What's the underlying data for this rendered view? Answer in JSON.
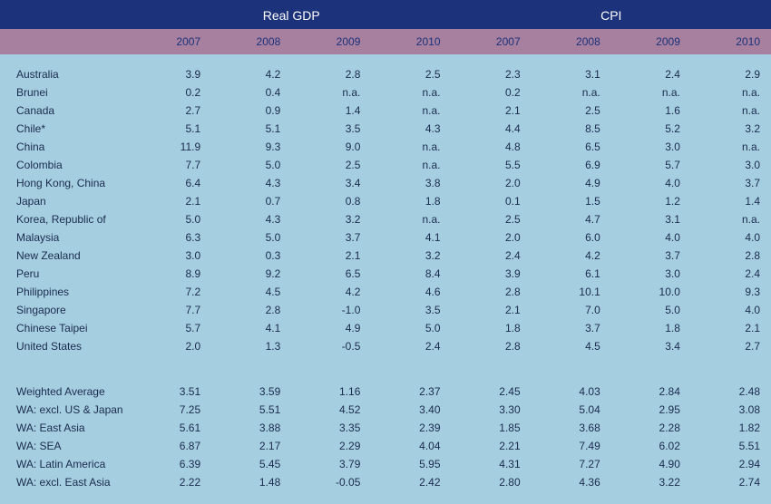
{
  "colors": {
    "header_bg": "#1c327a",
    "header_text": "#ffffff",
    "subheader_bg": "#a77f9f",
    "subheader_text": "#1c327a",
    "body_bg": "#a6cee1",
    "body_text": "#1a2b4d"
  },
  "groups": [
    {
      "label": "Real GDP",
      "span": 4
    },
    {
      "label": "CPI",
      "span": 4
    }
  ],
  "years": [
    "2007",
    "2008",
    "2009",
    "2010",
    "2007",
    "2008",
    "2009",
    "2010"
  ],
  "countries": [
    {
      "label": "Australia",
      "v": [
        "3.9",
        "4.2",
        "2.8",
        "2.5",
        "2.3",
        "3.1",
        "2.4",
        "2.9"
      ]
    },
    {
      "label": "Brunei",
      "v": [
        "0.2",
        "0.4",
        "n.a.",
        "n.a.",
        "0.2",
        "n.a.",
        "n.a.",
        "n.a."
      ]
    },
    {
      "label": "Canada",
      "v": [
        "2.7",
        "0.9",
        "1.4",
        "n.a.",
        "2.1",
        "2.5",
        "1.6",
        "n.a."
      ]
    },
    {
      "label": "Chile*",
      "v": [
        "5.1",
        "5.1",
        "3.5",
        "4.3",
        "4.4",
        "8.5",
        "5.2",
        "3.2"
      ]
    },
    {
      "label": "China",
      "v": [
        "11.9",
        "9.3",
        "9.0",
        "n.a.",
        "4.8",
        "6.5",
        "3.0",
        "n.a."
      ]
    },
    {
      "label": "Colombia",
      "v": [
        "7.7",
        "5.0",
        "2.5",
        "n.a.",
        "5.5",
        "6.9",
        "5.7",
        "3.0"
      ]
    },
    {
      "label": "Hong Kong, China",
      "v": [
        "6.4",
        "4.3",
        "3.4",
        "3.8",
        "2.0",
        "4.9",
        "4.0",
        "3.7"
      ]
    },
    {
      "label": "Japan",
      "v": [
        "2.1",
        "0.7",
        "0.8",
        "1.8",
        "0.1",
        "1.5",
        "1.2",
        "1.4"
      ]
    },
    {
      "label": "Korea, Republic of",
      "v": [
        "5.0",
        "4.3",
        "3.2",
        "n.a.",
        "2.5",
        "4.7",
        "3.1",
        "n.a."
      ]
    },
    {
      "label": "Malaysia",
      "v": [
        "6.3",
        "5.0",
        "3.7",
        "4.1",
        "2.0",
        "6.0",
        "4.0",
        "4.0"
      ]
    },
    {
      "label": "New Zealand",
      "v": [
        "3.0",
        "0.3",
        "2.1",
        "3.2",
        "2.4",
        "4.2",
        "3.7",
        "2.8"
      ]
    },
    {
      "label": "Peru",
      "v": [
        "8.9",
        "9.2",
        "6.5",
        "8.4",
        "3.9",
        "6.1",
        "3.0",
        "2.4"
      ]
    },
    {
      "label": "Philippines",
      "v": [
        "7.2",
        "4.5",
        "4.2",
        "4.6",
        "2.8",
        "10.1",
        "10.0",
        "9.3"
      ]
    },
    {
      "label": "Singapore",
      "v": [
        "7.7",
        "2.8",
        "-1.0",
        "3.5",
        "2.1",
        "7.0",
        "5.0",
        "4.0"
      ]
    },
    {
      "label": "Chinese Taipei",
      "v": [
        "5.7",
        "4.1",
        "4.9",
        "5.0",
        "1.8",
        "3.7",
        "1.8",
        "2.1"
      ]
    },
    {
      "label": "United States",
      "v": [
        "2.0",
        "1.3",
        "-0.5",
        "2.4",
        "2.8",
        "4.5",
        "3.4",
        "2.7"
      ]
    }
  ],
  "aggregates": [
    {
      "label": "Weighted Average",
      "v": [
        "3.51",
        "3.59",
        "1.16",
        "2.37",
        "2.45",
        "4.03",
        "2.84",
        "2.48"
      ]
    },
    {
      "label": "WA: excl. US & Japan",
      "v": [
        "7.25",
        "5.51",
        "4.52",
        "3.40",
        "3.30",
        "5.04",
        "2.95",
        "3.08"
      ]
    },
    {
      "label": "WA: East Asia",
      "v": [
        "5.61",
        "3.88",
        "3.35",
        "2.39",
        "1.85",
        "3.68",
        "2.28",
        "1.82"
      ]
    },
    {
      "label": "WA: SEA",
      "v": [
        "6.87",
        "2.17",
        "2.29",
        "4.04",
        "2.21",
        "7.49",
        "6.02",
        "5.51"
      ]
    },
    {
      "label": "WA: Latin America",
      "v": [
        "6.39",
        "5.45",
        "3.79",
        "5.95",
        "4.31",
        "7.27",
        "4.90",
        "2.94"
      ]
    },
    {
      "label": "WA: excl. East Asia",
      "v": [
        "2.22",
        "1.48",
        "-0.05",
        "2.42",
        "2.80",
        "4.36",
        "3.22",
        "2.74"
      ]
    }
  ]
}
